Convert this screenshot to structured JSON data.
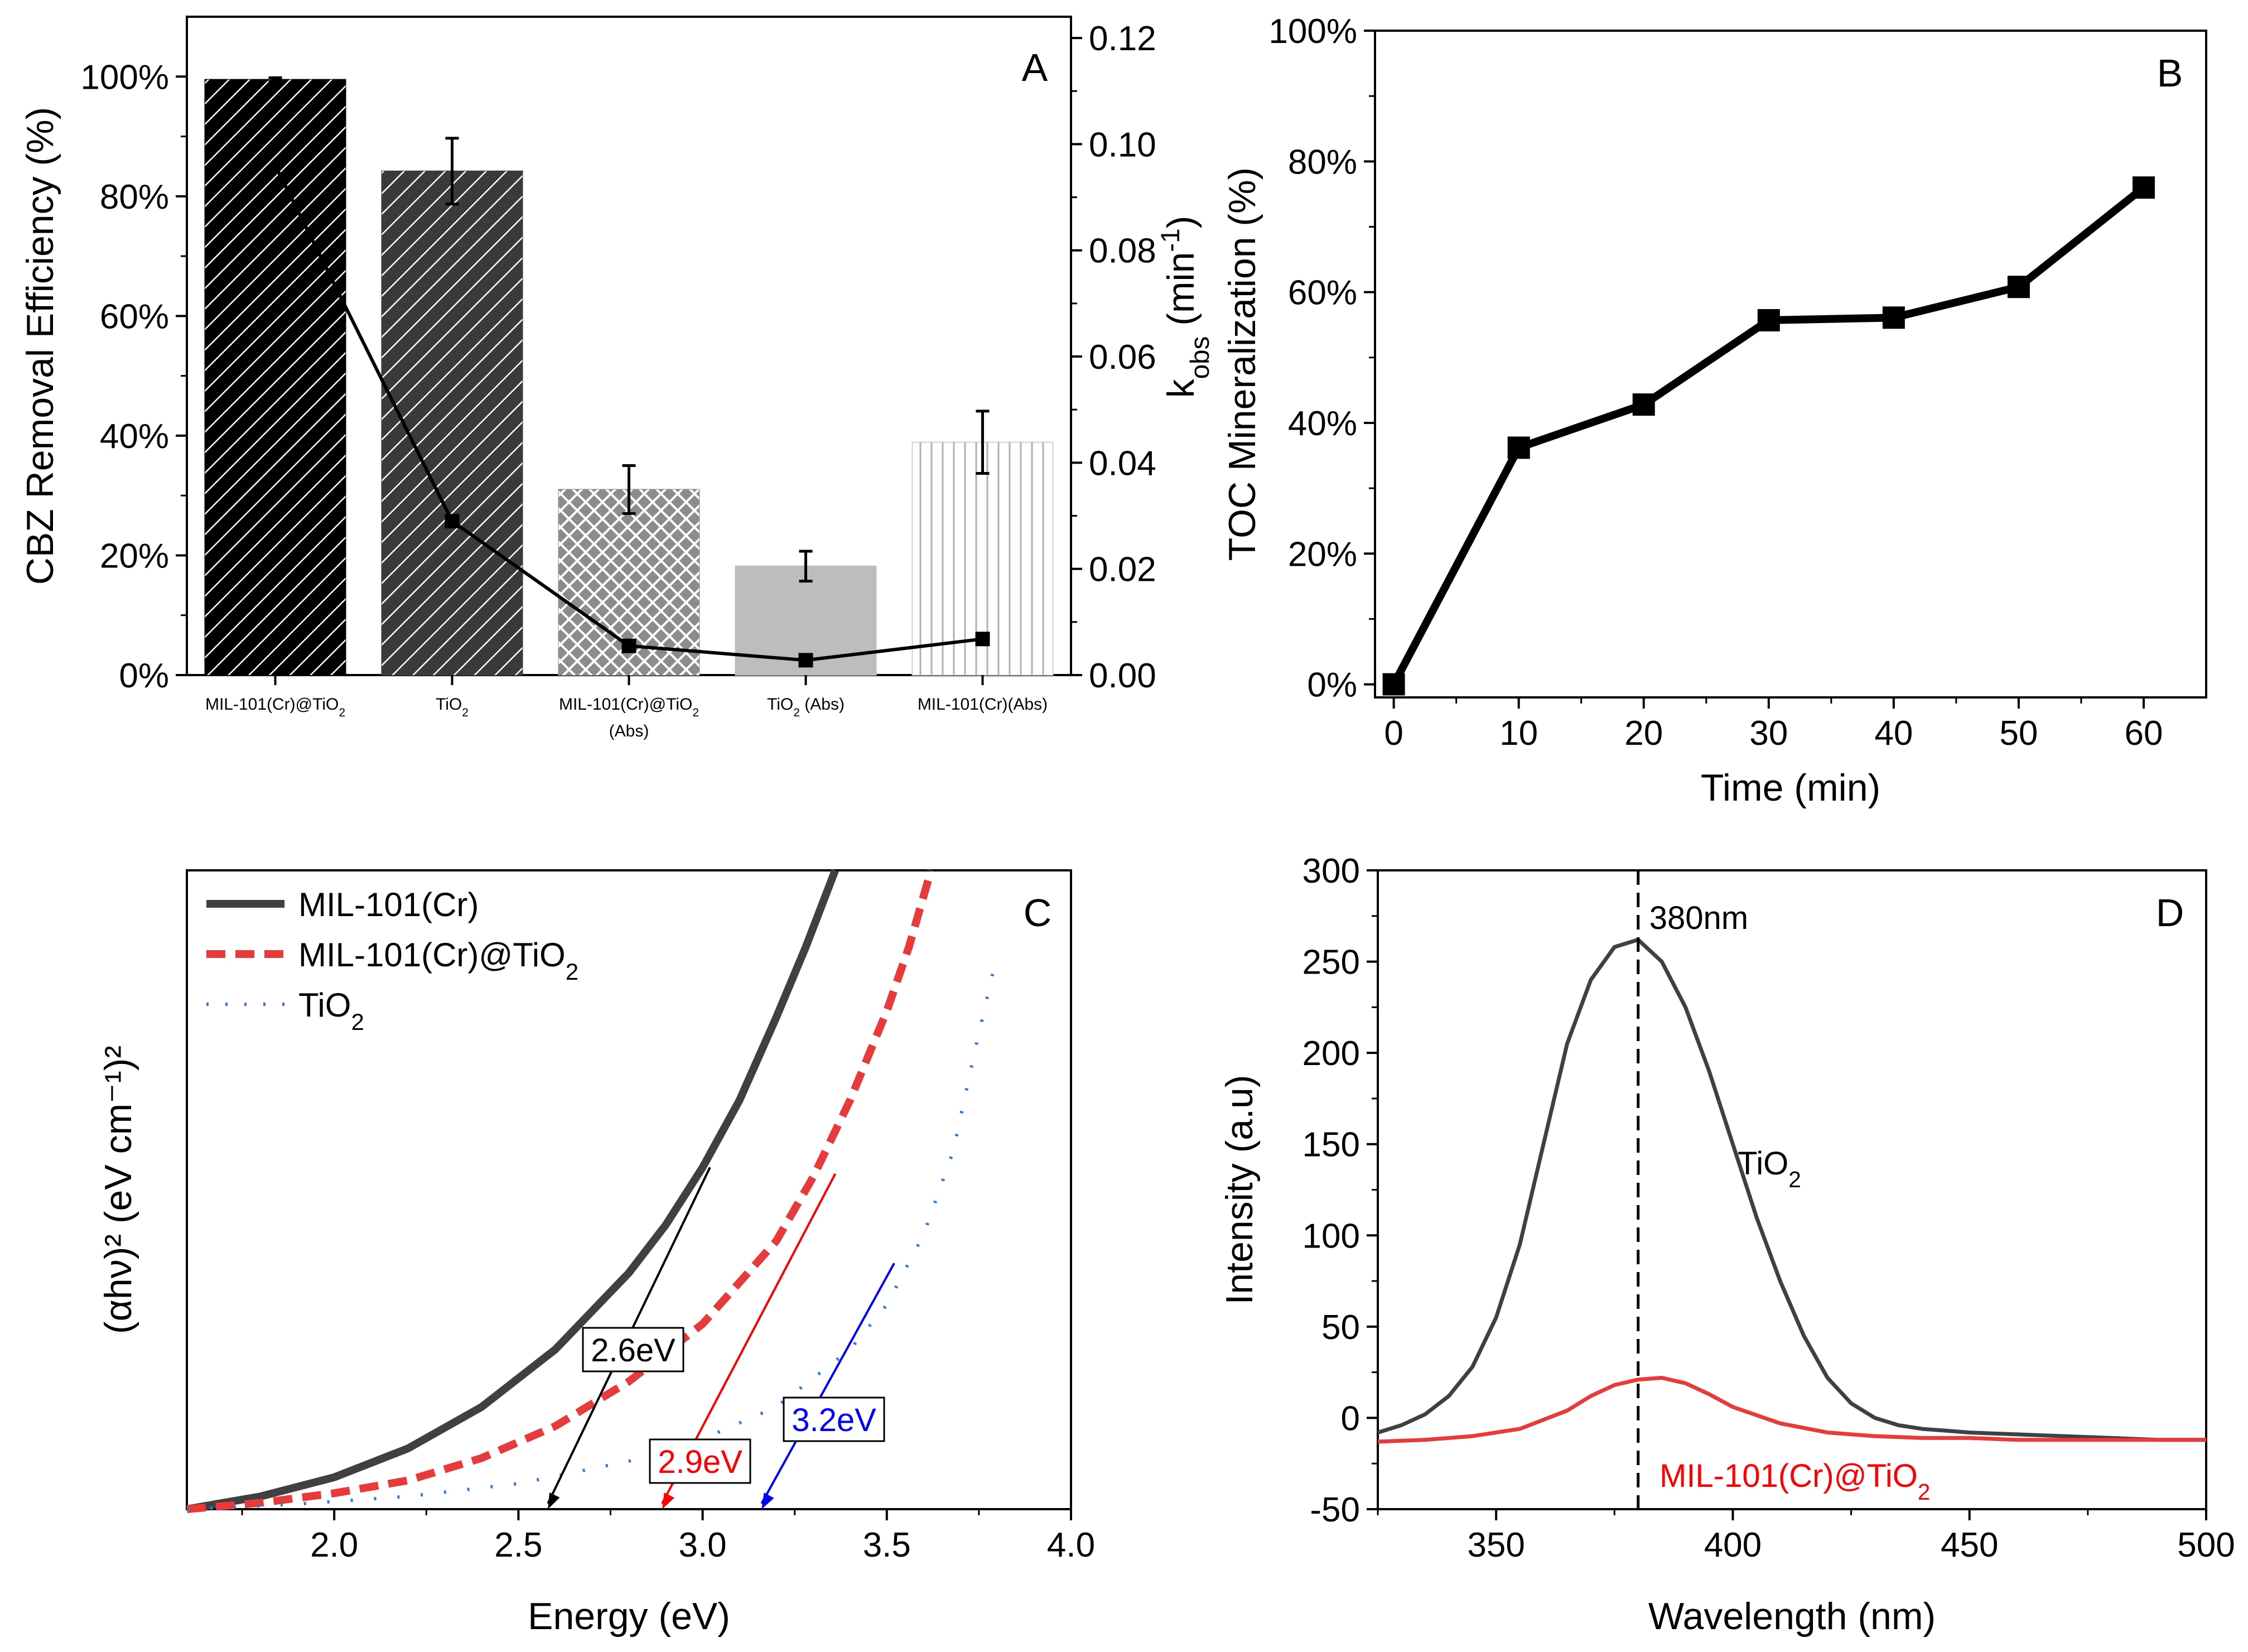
{
  "chart_data": [
    {
      "panel": "A",
      "type": "bar",
      "categories": [
        "MIL-101(Cr)@TiO2",
        "TiO2",
        "MIL-101(Cr)@TiO2 (Abs)",
        "TiO2 (Abs)",
        "MIL-101(Cr)(Abs)"
      ],
      "category_labels": [
        {
          "line1": "MIL-101(Cr)@TiO",
          "sub": "2",
          "line2": ""
        },
        {
          "line1": "TiO",
          "sub": "2",
          "line2": ""
        },
        {
          "line1": "MIL-101(Cr)@TiO",
          "sub": "2",
          "line2": "(Abs)"
        },
        {
          "line1": "TiO",
          "sub": "2",
          "line2": " (Abs)"
        },
        {
          "line1": "MIL-101(Cr)(Abs)",
          "sub": "",
          "line2": ""
        }
      ],
      "values": [
        99.5,
        84.2,
        31.0,
        18.2,
        38.9
      ],
      "errors": [
        0.3,
        5.5,
        4.0,
        2.5,
        5.2
      ],
      "bar_fills": [
        "#000000",
        "#3a3a3a",
        "#8c8c8c",
        "#bdbdbd",
        "#ffffff"
      ],
      "bar_patterns": [
        "diag",
        "diag",
        "crosshatch",
        "none",
        "vertical"
      ],
      "ylabel": "CBZ Removal Efficiency (%)",
      "ylim": [
        0,
        110
      ],
      "yticks": [
        0,
        20,
        40,
        60,
        80,
        100
      ],
      "ytick_labels": [
        "0%",
        "20%",
        "40%",
        "60%",
        "80%",
        "100%"
      ],
      "y2label_main": "k",
      "y2label_sub": "obs",
      "y2label_rest": " (min",
      "y2label_sup": "-1",
      "y2label_end": ")",
      "y2lim": [
        0,
        0.124
      ],
      "y2ticks": [
        0.0,
        0.02,
        0.04,
        0.06,
        0.08,
        0.1,
        0.12
      ],
      "y2tick_labels": [
        "0.00",
        "0.02",
        "0.04",
        "0.06",
        "0.08",
        "0.10",
        "0.12"
      ],
      "kobs": [
        0.096,
        0.029,
        0.0055,
        0.0028,
        0.0068
      ]
    },
    {
      "panel": "B",
      "type": "line",
      "x": [
        0,
        10,
        20,
        30,
        40,
        50,
        60
      ],
      "y": [
        0,
        36.2,
        42.8,
        55.7,
        56.1,
        60.8,
        76.0
      ],
      "xlabel": "Time (min)",
      "ylabel": "TOC Mineralization (%)",
      "xlim": [
        -1.5,
        65
      ],
      "ylim": [
        -2,
        100
      ],
      "xticks": [
        0,
        10,
        20,
        30,
        40,
        50,
        60
      ],
      "xtick_labels": [
        "0",
        "10",
        "20",
        "30",
        "40",
        "50",
        "60"
      ],
      "yticks": [
        0,
        20,
        40,
        60,
        80,
        100
      ],
      "ytick_labels": [
        "0%",
        "20%",
        "40%",
        "60%",
        "80%",
        "100%"
      ]
    },
    {
      "panel": "C",
      "type": "line",
      "xlabel": "Energy (eV)",
      "ylabel": "(αhν)² (eV cm⁻¹)²",
      "xlim": [
        1.6,
        4.0
      ],
      "ylim": [
        0,
        1
      ],
      "xticks": [
        2.0,
        2.5,
        3.0,
        3.5,
        4.0
      ],
      "xtick_labels": [
        "2.0",
        "2.5",
        "3.0",
        "3.5",
        "4.0"
      ],
      "series": [
        {
          "name": "MIL-101(Cr)",
          "color": "#404040",
          "style": "solid",
          "x": [
            1.6,
            1.8,
            2.0,
            2.2,
            2.4,
            2.6,
            2.8,
            2.9,
            3.0,
            3.1,
            3.2,
            3.28,
            3.36
          ],
          "y": [
            0.0,
            0.02,
            0.05,
            0.095,
            0.16,
            0.25,
            0.37,
            0.445,
            0.535,
            0.64,
            0.77,
            0.88,
            1.0
          ]
        },
        {
          "name": "MIL-101(Cr)@TiO2",
          "color": "#e83a3a",
          "style": "dashed",
          "x": [
            1.6,
            1.8,
            2.0,
            2.2,
            2.4,
            2.6,
            2.8,
            3.0,
            3.2,
            3.3,
            3.4,
            3.5,
            3.56,
            3.62
          ],
          "y": [
            0.0,
            0.01,
            0.025,
            0.045,
            0.08,
            0.13,
            0.2,
            0.29,
            0.42,
            0.52,
            0.64,
            0.78,
            0.88,
            1.0
          ]
        },
        {
          "name": "TiO2",
          "color": "#2a7be0",
          "style": "dotted",
          "x": [
            1.6,
            1.9,
            2.2,
            2.5,
            2.8,
            3.0,
            3.2,
            3.4,
            3.5,
            3.6,
            3.68,
            3.74,
            3.8
          ],
          "y": [
            0.0,
            0.008,
            0.02,
            0.04,
            0.075,
            0.11,
            0.16,
            0.25,
            0.32,
            0.43,
            0.56,
            0.72,
            0.87
          ]
        }
      ],
      "legend": [
        {
          "text": "MIL-101(Cr)",
          "sub": ""
        },
        {
          "text": "MIL-101(Cr)@TiO",
          "sub": "2"
        },
        {
          "text": "TiO",
          "sub": "2"
        }
      ],
      "annotations": [
        {
          "label": "2.6eV",
          "color": "#000000",
          "x0": 3.02,
          "y0": 0.535,
          "x1": 2.58,
          "y1": 0.0
        },
        {
          "label": "2.9eV",
          "color": "#ff0000",
          "x0": 3.36,
          "y0": 0.525,
          "x1": 2.89,
          "y1": 0.0
        },
        {
          "label": "3.2eV",
          "color": "#0000ff",
          "x0": 3.52,
          "y0": 0.385,
          "x1": 3.16,
          "y1": 0.0
        }
      ]
    },
    {
      "panel": "D",
      "type": "line",
      "xlabel": "Wavelength (nm)",
      "ylabel": "Intensity (a.u)",
      "xlim": [
        325,
        500
      ],
      "ylim": [
        -50,
        300
      ],
      "xticks": [
        350,
        400,
        450,
        500
      ],
      "xtick_labels": [
        "350",
        "400",
        "450",
        "500"
      ],
      "yticks": [
        -50,
        0,
        50,
        100,
        150,
        200,
        250,
        300
      ],
      "ytick_labels": [
        "-50",
        "0",
        "50",
        "100",
        "150",
        "200",
        "250",
        "300"
      ],
      "peak_label": "380nm",
      "peak_x": 380,
      "series": [
        {
          "name": "TiO2",
          "color": "#404040",
          "x": [
            325,
            330,
            335,
            340,
            345,
            350,
            355,
            360,
            365,
            370,
            375,
            380,
            385,
            390,
            395,
            400,
            405,
            410,
            415,
            420,
            425,
            430,
            435,
            440,
            445,
            450,
            460,
            470,
            480,
            490,
            500
          ],
          "y": [
            -8,
            -4,
            2,
            12,
            28,
            55,
            95,
            150,
            205,
            240,
            258,
            262,
            250,
            225,
            190,
            150,
            110,
            75,
            45,
            22,
            8,
            0,
            -4,
            -6,
            -7,
            -8,
            -9,
            -10,
            -11,
            -12,
            -12
          ]
        },
        {
          "name": "MIL-101(Cr)@TiO2",
          "color": "#e83a3a",
          "x": [
            325,
            335,
            345,
            355,
            365,
            370,
            375,
            380,
            385,
            390,
            395,
            400,
            410,
            420,
            430,
            440,
            450,
            460,
            470,
            480,
            490,
            500
          ],
          "y": [
            -13,
            -12,
            -10,
            -6,
            4,
            12,
            18,
            21,
            22,
            19,
            13,
            6,
            -3,
            -8,
            -10,
            -11,
            -11,
            -12,
            -12,
            -12,
            -12,
            -12
          ]
        }
      ],
      "labels": [
        {
          "text": "TiO",
          "sub": "2",
          "color": "#000000"
        },
        {
          "text": "MIL-101(Cr)@TiO",
          "sub": "2",
          "color": "#ff0000"
        }
      ]
    }
  ]
}
